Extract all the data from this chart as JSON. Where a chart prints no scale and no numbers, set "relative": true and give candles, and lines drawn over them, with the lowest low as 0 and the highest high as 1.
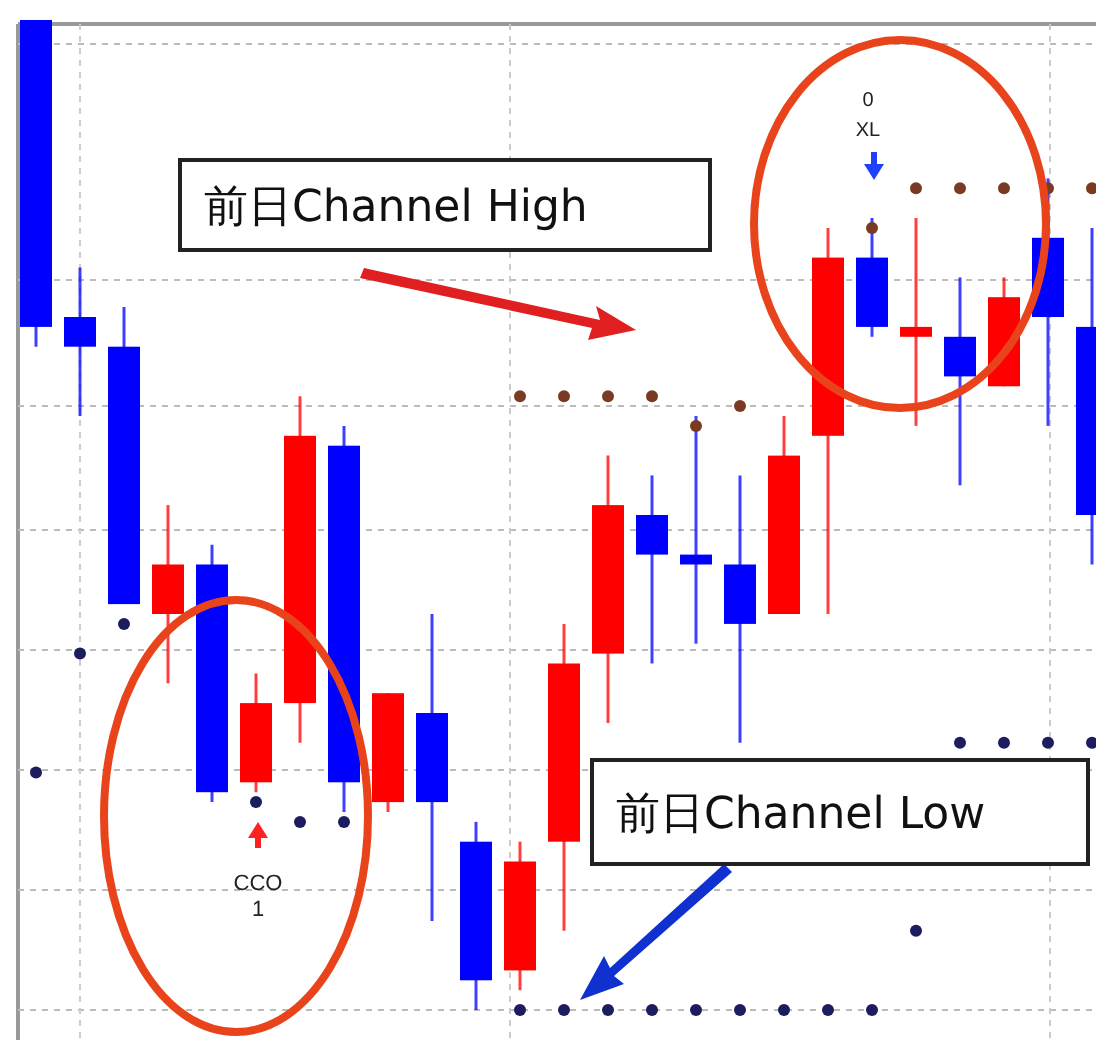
{
  "chart_data": {
    "type": "candlestick",
    "relative": true,
    "categories": [
      null,
      null,
      null,
      null,
      null,
      null,
      null,
      null,
      null,
      null,
      null,
      null,
      null,
      null,
      null,
      null,
      null,
      null,
      null,
      null,
      null,
      null,
      null,
      null,
      null
    ],
    "ohlc": [
      [
        1.0,
        1.0,
        0.67,
        0.69
      ],
      [
        0.7,
        0.75,
        0.6,
        0.67
      ],
      [
        0.67,
        0.71,
        0.41,
        0.41
      ],
      [
        0.4,
        0.51,
        0.33,
        0.45
      ],
      [
        0.45,
        0.47,
        0.21,
        0.22
      ],
      [
        0.23,
        0.34,
        0.22,
        0.31
      ],
      [
        0.31,
        0.62,
        0.27,
        0.58
      ],
      [
        0.57,
        0.59,
        0.2,
        0.23
      ],
      [
        0.21,
        0.32,
        0.2,
        0.32
      ],
      [
        0.3,
        0.4,
        0.09,
        0.21
      ],
      [
        0.17,
        0.19,
        0.0,
        0.03
      ],
      [
        0.04,
        0.17,
        0.02,
        0.15
      ],
      [
        0.17,
        0.39,
        0.08,
        0.35
      ],
      [
        0.36,
        0.56,
        0.29,
        0.51
      ],
      [
        0.5,
        0.54,
        0.35,
        0.46
      ],
      [
        0.46,
        0.6,
        0.37,
        0.45
      ],
      [
        0.45,
        0.54,
        0.27,
        0.39
      ],
      [
        0.4,
        0.6,
        0.4,
        0.56
      ],
      [
        0.58,
        0.79,
        0.4,
        0.76
      ],
      [
        0.76,
        0.8,
        0.68,
        0.69
      ],
      [
        0.68,
        0.8,
        0.59,
        0.69
      ],
      [
        0.68,
        0.74,
        0.53,
        0.64
      ],
      [
        0.63,
        0.74,
        0.63,
        0.72
      ],
      [
        0.78,
        0.84,
        0.59,
        0.7
      ],
      [
        0.69,
        0.79,
        0.45,
        0.5
      ]
    ],
    "colors": [
      "#0000ff",
      "#0000ff",
      "#0000ff",
      "#ff0000",
      "#0000ff",
      "#ff0000",
      "#ff0000",
      "#0000ff",
      "#ff0000",
      "#0000ff",
      "#0000ff",
      "#ff0000",
      "#ff0000",
      "#ff0000",
      "#0000ff",
      "#0000ff",
      "#0000ff",
      "#ff0000",
      "#ff0000",
      "#0000ff",
      "#ff0000",
      "#0000ff",
      "#ff0000",
      "#0000ff",
      "#0000ff"
    ],
    "series": [
      {
        "type": "scatter",
        "color": "#7a3b22",
        "values": [
          null,
          null,
          null,
          null,
          null,
          null,
          null,
          null,
          null,
          null,
          null,
          0.62,
          0.62,
          0.62,
          0.62,
          0.59,
          0.61,
          null,
          null,
          0.79,
          0.83,
          0.83,
          0.83,
          0.83,
          0.83
        ]
      },
      {
        "type": "scatter",
        "color": "#1c1c5e",
        "values": [
          0.24,
          0.36,
          0.39,
          null,
          null,
          0.21,
          0.19,
          0.19,
          null,
          null,
          null,
          0.0,
          0.0,
          0.0,
          0.0,
          0.0,
          0.0,
          0.0,
          0.0,
          0.0,
          0.08,
          0.27,
          0.27,
          0.27,
          0.27
        ]
      }
    ],
    "marker": "circle",
    "grid": true,
    "annotations": [
      "前日Channel High",
      "前日Channel Low",
      "CCO",
      "1",
      "0",
      "XL"
    ]
  }
}
